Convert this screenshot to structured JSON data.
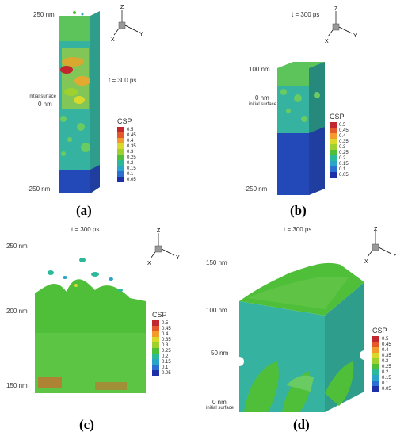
{
  "panels": {
    "a": {
      "caption": "(a)",
      "time": "t = 300 ps",
      "ticks": [
        "250 nm",
        "0 nm",
        "-250 nm"
      ],
      "surface": "initial surface"
    },
    "b": {
      "caption": "(b)",
      "time": "t = 300 ps",
      "ticks": [
        "100 nm",
        "0 nm",
        "-250 nm"
      ],
      "surface": "initial surface"
    },
    "c": {
      "caption": "(c)",
      "time": "t = 300 ps",
      "ticks": [
        "250 nm",
        "200 nm",
        "150 nm"
      ]
    },
    "d": {
      "caption": "(d)",
      "time": "t = 300 ps",
      "ticks": [
        "150 nm",
        "100 nm",
        "50 nm",
        "0 nm"
      ],
      "surface": "initial surface"
    }
  },
  "axes": {
    "z": "Z",
    "y": "Y",
    "x": "X"
  },
  "colorbar": {
    "title": "CSP",
    "levels": [
      "0.5",
      "0.45",
      "0.4",
      "0.35",
      "0.3",
      "0.25",
      "0.2",
      "0.15",
      "0.1",
      "0.05"
    ],
    "colors": [
      "#c1272d",
      "#e4582a",
      "#f29a2e",
      "#d9d92b",
      "#9ed12f",
      "#4fbf3a",
      "#2cb99a",
      "#2aa4c9",
      "#2d6fd1",
      "#1e2fa8"
    ]
  }
}
